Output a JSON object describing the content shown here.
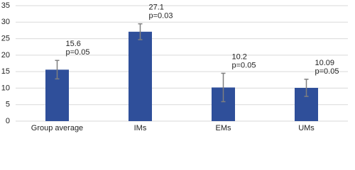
{
  "chart_data": {
    "type": "bar",
    "categories": [
      "Group average",
      "IMs",
      "EMs",
      "UMs"
    ],
    "values": [
      15.6,
      27.1,
      10.2,
      10.09
    ],
    "errors": [
      2.8,
      2.4,
      4.3,
      2.6
    ],
    "annotations": [
      "p=0.05",
      "p=0.03",
      "p=0.05",
      "p=0.05"
    ],
    "color": "#2f4f9a",
    "error_color": "#7f7f7f",
    "ylim": [
      0,
      35
    ],
    "yticks": [
      0,
      5,
      10,
      15,
      20,
      25,
      30,
      35
    ],
    "grid": true
  }
}
